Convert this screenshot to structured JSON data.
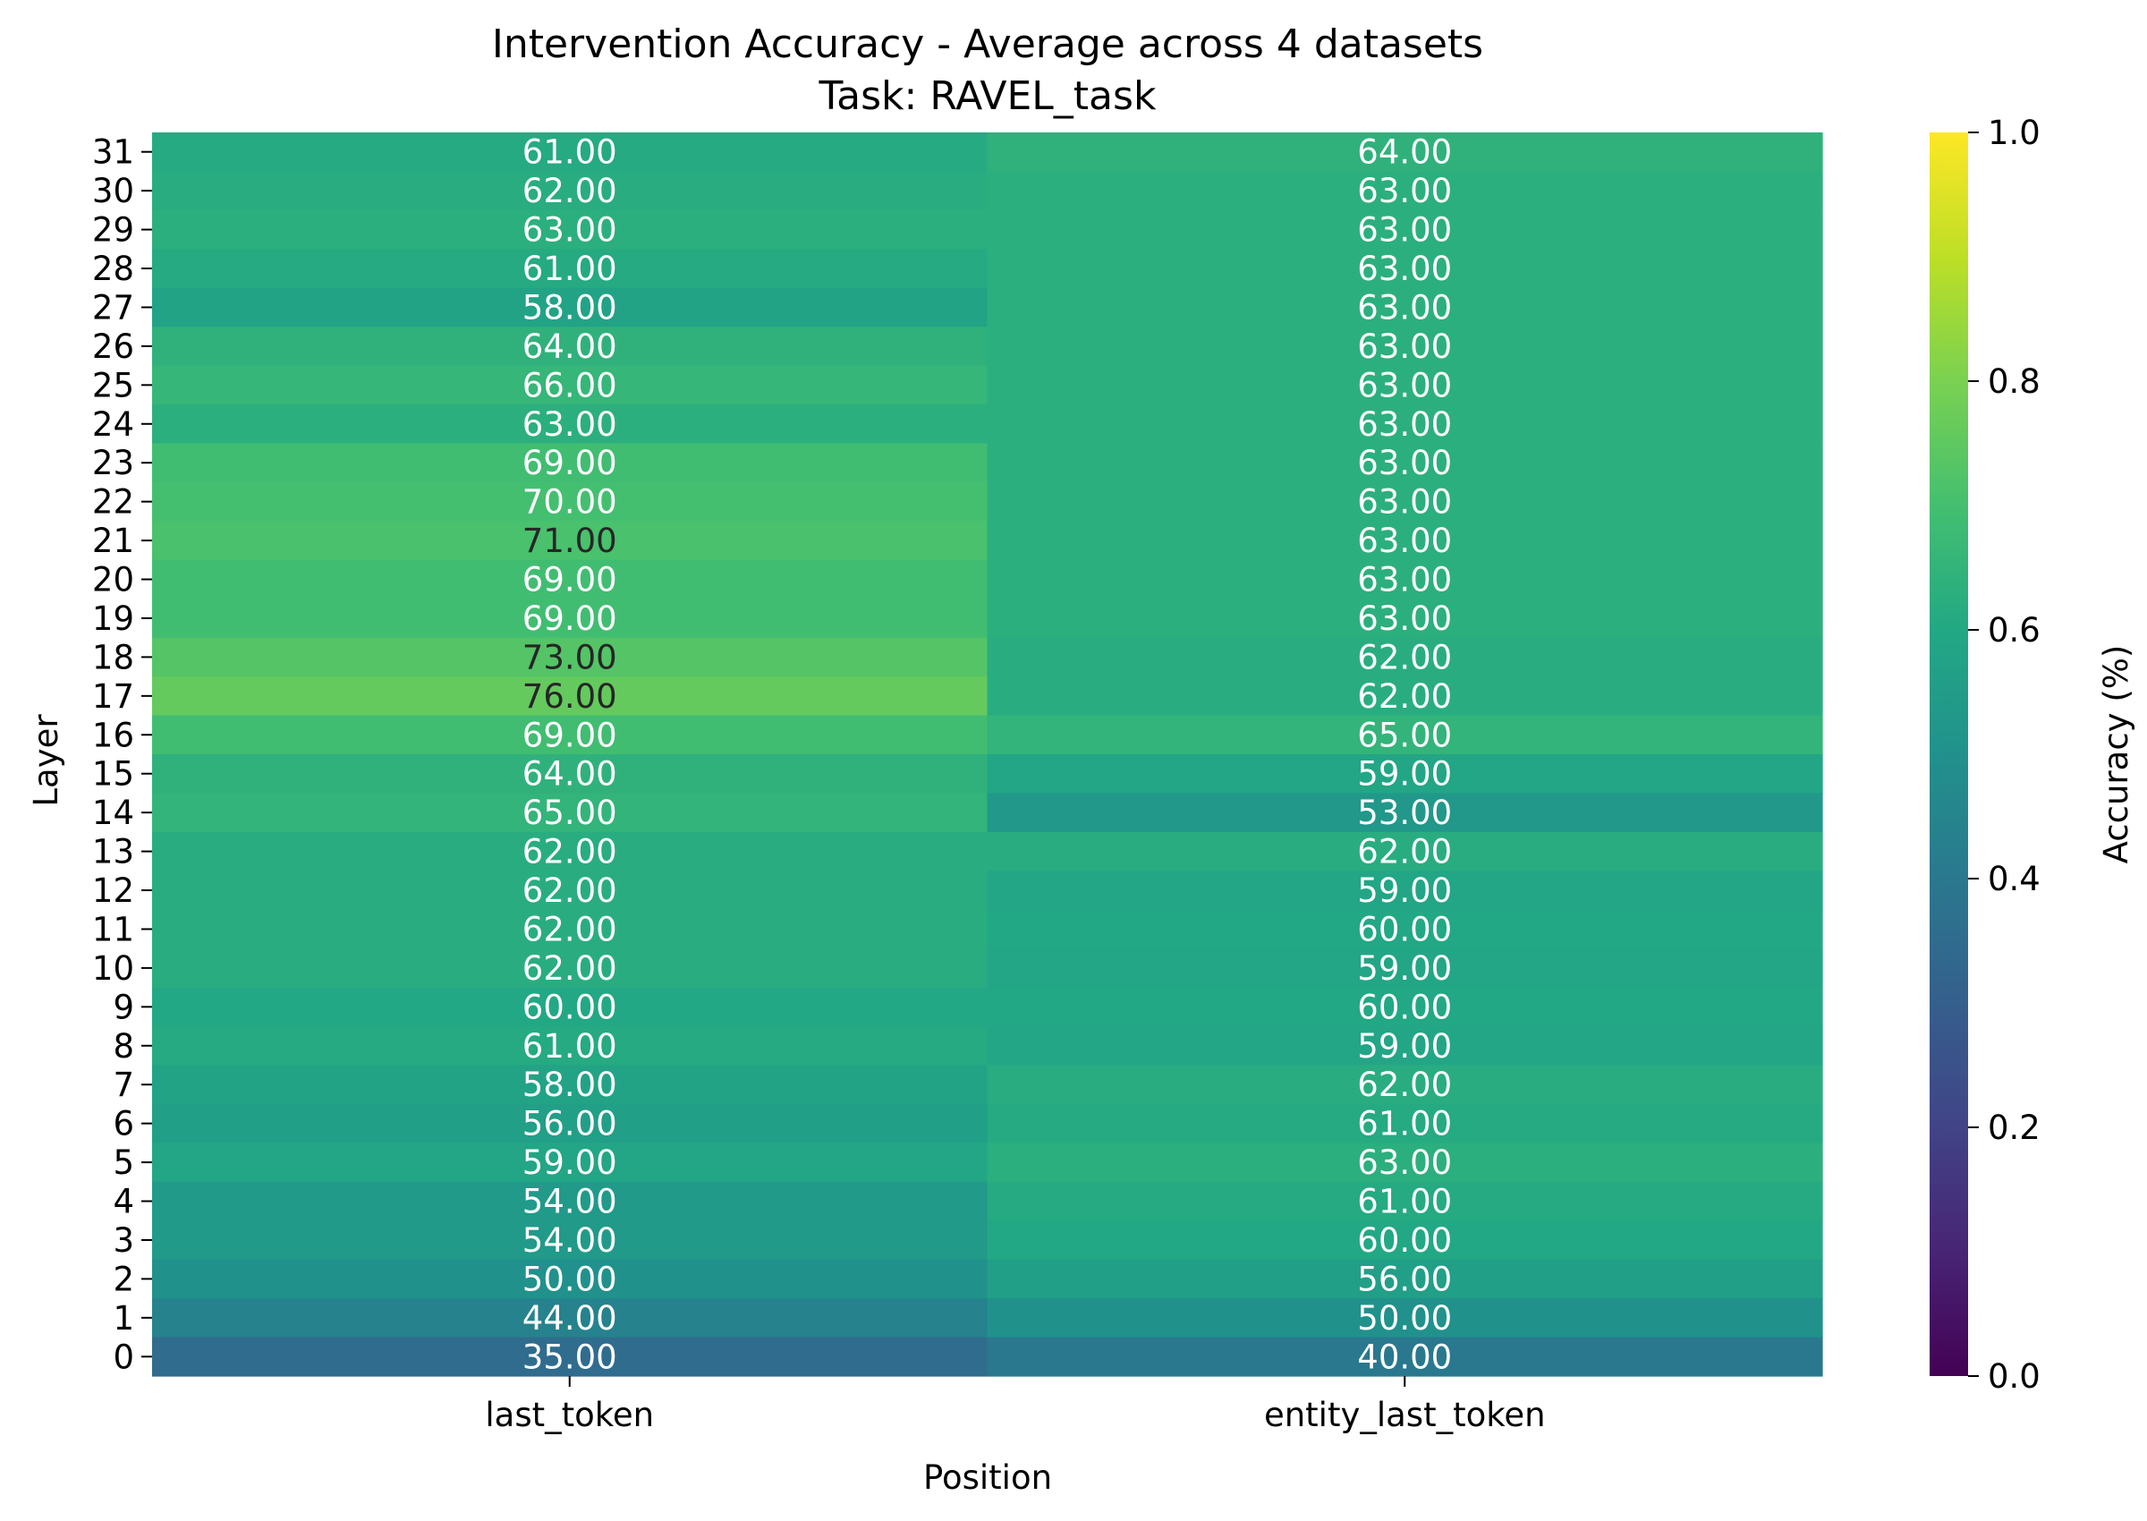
{
  "chart_data": {
    "type": "heatmap",
    "title": "Intervention Accuracy - Average across 4 datasets",
    "subtitle": "Task: RAVEL_task",
    "xlabel": "Position",
    "ylabel": "Layer",
    "colorbar_label": "Accuracy (%)",
    "colormap": "viridis",
    "value_range": [
      0,
      1
    ],
    "colorbar_ticks": [
      "0.0",
      "0.2",
      "0.4",
      "0.6",
      "0.8",
      "1.0"
    ],
    "annotation_threshold": 70.5,
    "columns": [
      "last_token",
      "entity_last_token"
    ],
    "rows": [
      {
        "layer": "31",
        "values": [
          61.0,
          64.0
        ]
      },
      {
        "layer": "30",
        "values": [
          62.0,
          63.0
        ]
      },
      {
        "layer": "29",
        "values": [
          63.0,
          63.0
        ]
      },
      {
        "layer": "28",
        "values": [
          61.0,
          63.0
        ]
      },
      {
        "layer": "27",
        "values": [
          58.0,
          63.0
        ]
      },
      {
        "layer": "26",
        "values": [
          64.0,
          63.0
        ]
      },
      {
        "layer": "25",
        "values": [
          66.0,
          63.0
        ]
      },
      {
        "layer": "24",
        "values": [
          63.0,
          63.0
        ]
      },
      {
        "layer": "23",
        "values": [
          69.0,
          63.0
        ]
      },
      {
        "layer": "22",
        "values": [
          70.0,
          63.0
        ]
      },
      {
        "layer": "21",
        "values": [
          71.0,
          63.0
        ]
      },
      {
        "layer": "20",
        "values": [
          69.0,
          63.0
        ]
      },
      {
        "layer": "19",
        "values": [
          69.0,
          63.0
        ]
      },
      {
        "layer": "18",
        "values": [
          73.0,
          62.0
        ]
      },
      {
        "layer": "17",
        "values": [
          76.0,
          62.0
        ]
      },
      {
        "layer": "16",
        "values": [
          69.0,
          65.0
        ]
      },
      {
        "layer": "15",
        "values": [
          64.0,
          59.0
        ]
      },
      {
        "layer": "14",
        "values": [
          65.0,
          53.0
        ]
      },
      {
        "layer": "13",
        "values": [
          62.0,
          62.0
        ]
      },
      {
        "layer": "12",
        "values": [
          62.0,
          59.0
        ]
      },
      {
        "layer": "11",
        "values": [
          62.0,
          60.0
        ]
      },
      {
        "layer": "10",
        "values": [
          62.0,
          59.0
        ]
      },
      {
        "layer": "9",
        "values": [
          60.0,
          60.0
        ]
      },
      {
        "layer": "8",
        "values": [
          61.0,
          59.0
        ]
      },
      {
        "layer": "7",
        "values": [
          58.0,
          62.0
        ]
      },
      {
        "layer": "6",
        "values": [
          56.0,
          61.0
        ]
      },
      {
        "layer": "5",
        "values": [
          59.0,
          63.0
        ]
      },
      {
        "layer": "4",
        "values": [
          54.0,
          61.0
        ]
      },
      {
        "layer": "3",
        "values": [
          54.0,
          60.0
        ]
      },
      {
        "layer": "2",
        "values": [
          50.0,
          56.0
        ]
      },
      {
        "layer": "1",
        "values": [
          44.0,
          50.0
        ]
      },
      {
        "layer": "0",
        "values": [
          35.0,
          40.0
        ]
      }
    ]
  }
}
